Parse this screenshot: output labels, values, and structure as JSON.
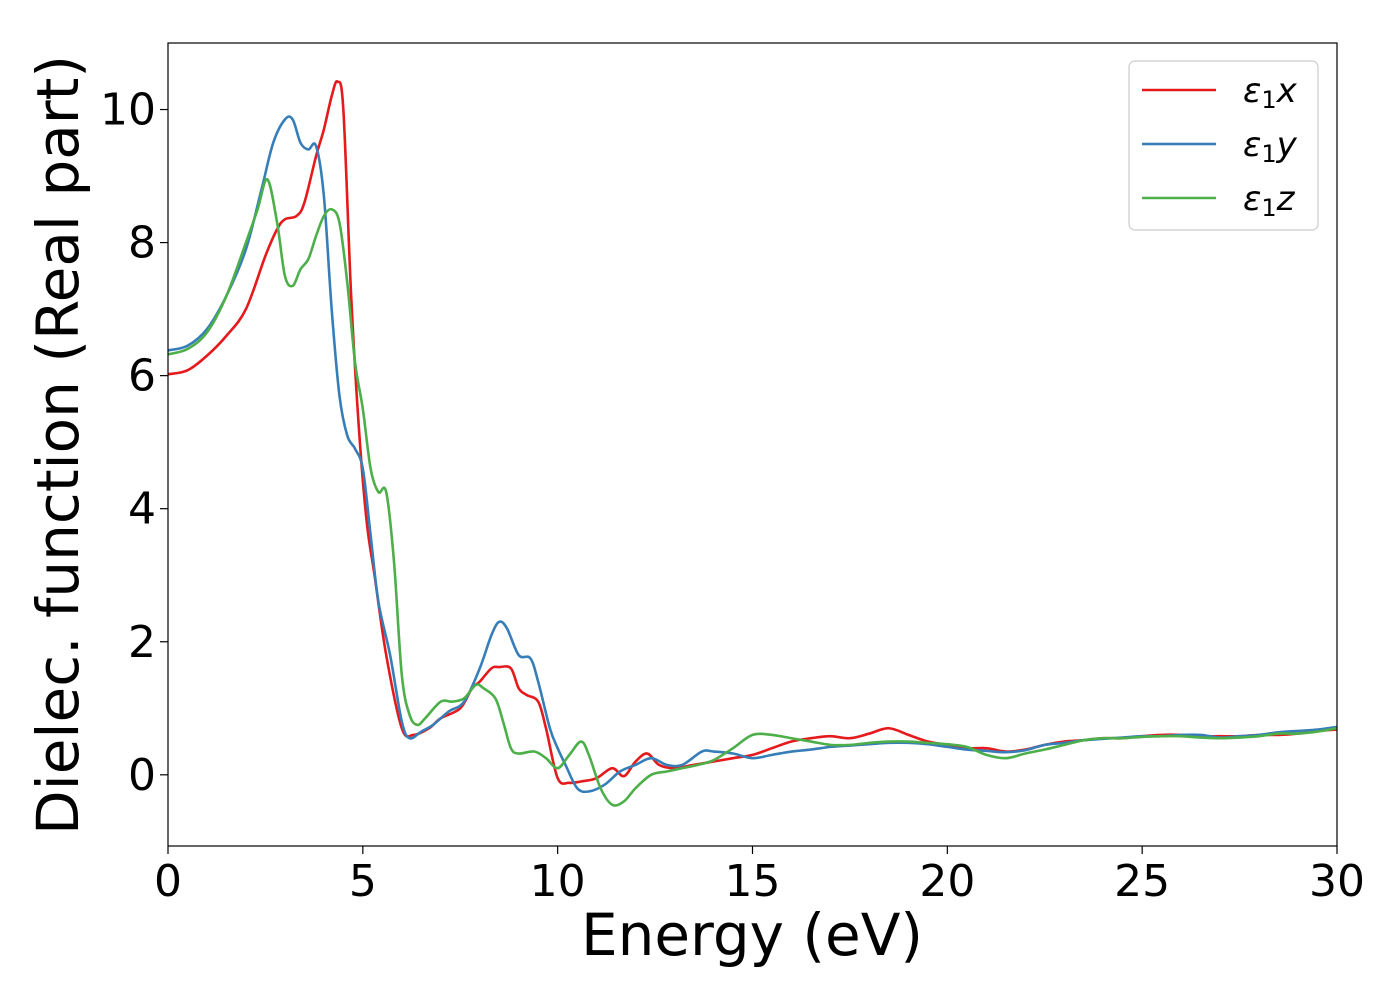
{
  "chart_data": {
    "type": "line",
    "title": "",
    "xlabel": "Energy (eV)",
    "ylabel": "Dielec. function (Real part)",
    "xlim": [
      0,
      30
    ],
    "ylim": [
      -1.07,
      11.0
    ],
    "xticks": [
      0,
      5,
      10,
      15,
      20,
      25,
      30
    ],
    "yticks": [
      0,
      2,
      4,
      6,
      8,
      10
    ],
    "grid": false,
    "legend_position": "top-right",
    "series": [
      {
        "name": "ε1x",
        "legend_symbol": "ε",
        "legend_subscript": "1",
        "legend_suffix": "x",
        "color": "#e41a1c",
        "x": [
          0,
          0.5,
          1.0,
          1.5,
          2.0,
          2.5,
          2.8,
          3.0,
          3.3,
          3.5,
          3.8,
          4.0,
          4.2,
          4.35,
          4.5,
          4.7,
          4.9,
          5.1,
          5.3,
          5.6,
          6.0,
          6.3,
          6.7,
          7.0,
          7.5,
          7.8,
          8.0,
          8.3,
          8.5,
          8.8,
          9.0,
          9.2,
          9.5,
          9.7,
          10.0,
          10.3,
          10.6,
          11.0,
          11.4,
          11.7,
          12.0,
          12.3,
          12.6,
          13.0,
          13.5,
          14.0,
          14.5,
          15.0,
          15.5,
          16.0,
          16.5,
          17.0,
          17.5,
          18.0,
          18.5,
          19.0,
          19.5,
          20.0,
          20.5,
          21.0,
          21.5,
          22.0,
          22.5,
          23.0,
          23.5,
          24.0,
          24.5,
          25.0,
          25.5,
          26.0,
          26.5,
          27.0,
          27.5,
          28.0,
          28.5,
          29.0,
          29.5,
          30.0
        ],
        "y": [
          6.02,
          6.08,
          6.3,
          6.6,
          7.0,
          7.8,
          8.2,
          8.35,
          8.4,
          8.6,
          9.3,
          9.7,
          10.2,
          10.42,
          10.0,
          7.2,
          5.2,
          3.8,
          3.0,
          1.8,
          0.7,
          0.6,
          0.7,
          0.85,
          1.0,
          1.3,
          1.4,
          1.6,
          1.62,
          1.6,
          1.3,
          1.2,
          1.1,
          0.7,
          -0.05,
          -0.12,
          -0.1,
          -0.05,
          0.1,
          -0.02,
          0.2,
          0.32,
          0.15,
          0.1,
          0.15,
          0.2,
          0.25,
          0.3,
          0.4,
          0.5,
          0.55,
          0.58,
          0.55,
          0.62,
          0.7,
          0.6,
          0.5,
          0.45,
          0.4,
          0.4,
          0.35,
          0.38,
          0.45,
          0.5,
          0.52,
          0.55,
          0.55,
          0.58,
          0.6,
          0.6,
          0.58,
          0.58,
          0.58,
          0.6,
          0.6,
          0.62,
          0.66,
          0.68
        ]
      },
      {
        "name": "ε1y",
        "legend_symbol": "ε",
        "legend_subscript": "1",
        "legend_suffix": "y",
        "color": "#377eb8",
        "x": [
          0,
          0.5,
          1.0,
          1.5,
          2.0,
          2.4,
          2.7,
          3.0,
          3.2,
          3.4,
          3.6,
          3.8,
          4.0,
          4.2,
          4.4,
          4.6,
          4.8,
          5.0,
          5.2,
          5.4,
          5.7,
          6.0,
          6.2,
          6.5,
          6.8,
          7.2,
          7.6,
          8.0,
          8.3,
          8.5,
          8.7,
          9.0,
          9.3,
          9.5,
          9.8,
          10.0,
          10.2,
          10.5,
          10.8,
          11.2,
          11.6,
          12.0,
          12.4,
          12.8,
          13.2,
          13.7,
          14.0,
          14.5,
          15.0,
          15.5,
          16.0,
          16.5,
          17.0,
          17.5,
          18.0,
          18.5,
          19.0,
          19.5,
          20.0,
          20.5,
          21.0,
          21.5,
          22.0,
          22.5,
          23.0,
          23.5,
          24.0,
          24.5,
          25.0,
          25.5,
          26.0,
          26.5,
          27.0,
          27.5,
          28.0,
          28.5,
          29.0,
          29.5,
          30.0
        ],
        "y": [
          6.38,
          6.45,
          6.7,
          7.2,
          7.9,
          8.8,
          9.5,
          9.85,
          9.85,
          9.5,
          9.4,
          9.45,
          8.7,
          7.0,
          5.7,
          5.1,
          4.9,
          4.6,
          3.6,
          2.6,
          1.8,
          0.8,
          0.55,
          0.65,
          0.75,
          0.95,
          1.1,
          1.6,
          2.1,
          2.3,
          2.2,
          1.8,
          1.75,
          1.4,
          0.7,
          0.4,
          0.15,
          -0.2,
          -0.25,
          -0.15,
          0.05,
          0.15,
          0.25,
          0.15,
          0.15,
          0.35,
          0.35,
          0.32,
          0.25,
          0.3,
          0.35,
          0.38,
          0.42,
          0.44,
          0.46,
          0.48,
          0.48,
          0.46,
          0.42,
          0.38,
          0.36,
          0.34,
          0.37,
          0.45,
          0.48,
          0.52,
          0.54,
          0.56,
          0.58,
          0.58,
          0.6,
          0.6,
          0.56,
          0.58,
          0.6,
          0.64,
          0.66,
          0.68,
          0.72
        ]
      },
      {
        "name": "ε1z",
        "legend_symbol": "ε",
        "legend_subscript": "1",
        "legend_suffix": "z",
        "color": "#4daf4a",
        "x": [
          0,
          0.5,
          1.0,
          1.5,
          2.0,
          2.3,
          2.55,
          2.8,
          3.0,
          3.2,
          3.4,
          3.6,
          3.8,
          4.0,
          4.2,
          4.4,
          4.6,
          4.8,
          5.0,
          5.2,
          5.4,
          5.6,
          5.8,
          6.0,
          6.2,
          6.4,
          6.6,
          7.0,
          7.3,
          7.6,
          7.9,
          8.1,
          8.4,
          8.6,
          8.8,
          9.0,
          9.4,
          9.7,
          10.0,
          10.3,
          10.6,
          10.8,
          11.1,
          11.4,
          11.7,
          12.0,
          12.4,
          12.8,
          13.2,
          13.6,
          14.0,
          14.5,
          15.0,
          15.5,
          16.0,
          16.5,
          17.0,
          17.5,
          18.0,
          18.5,
          19.0,
          19.5,
          20.0,
          20.5,
          21.0,
          21.5,
          22.0,
          22.5,
          23.0,
          23.5,
          24.0,
          24.5,
          25.0,
          25.5,
          26.0,
          26.5,
          27.0,
          27.5,
          28.0,
          28.5,
          29.0,
          29.5,
          30.0
        ],
        "y": [
          6.32,
          6.4,
          6.65,
          7.2,
          8.0,
          8.5,
          8.95,
          8.3,
          7.5,
          7.35,
          7.6,
          7.75,
          8.1,
          8.4,
          8.5,
          8.3,
          7.4,
          6.2,
          5.5,
          4.6,
          4.25,
          4.25,
          3.2,
          1.5,
          0.9,
          0.75,
          0.85,
          1.1,
          1.1,
          1.15,
          1.35,
          1.3,
          1.15,
          0.8,
          0.4,
          0.32,
          0.35,
          0.25,
          0.1,
          0.3,
          0.5,
          0.3,
          -0.2,
          -0.45,
          -0.4,
          -0.2,
          0.0,
          0.05,
          0.1,
          0.15,
          0.22,
          0.4,
          0.6,
          0.6,
          0.55,
          0.5,
          0.45,
          0.45,
          0.48,
          0.5,
          0.5,
          0.48,
          0.46,
          0.42,
          0.3,
          0.25,
          0.32,
          0.38,
          0.45,
          0.52,
          0.55,
          0.55,
          0.57,
          0.58,
          0.58,
          0.56,
          0.55,
          0.56,
          0.58,
          0.62,
          0.62,
          0.65,
          0.7
        ]
      }
    ]
  }
}
